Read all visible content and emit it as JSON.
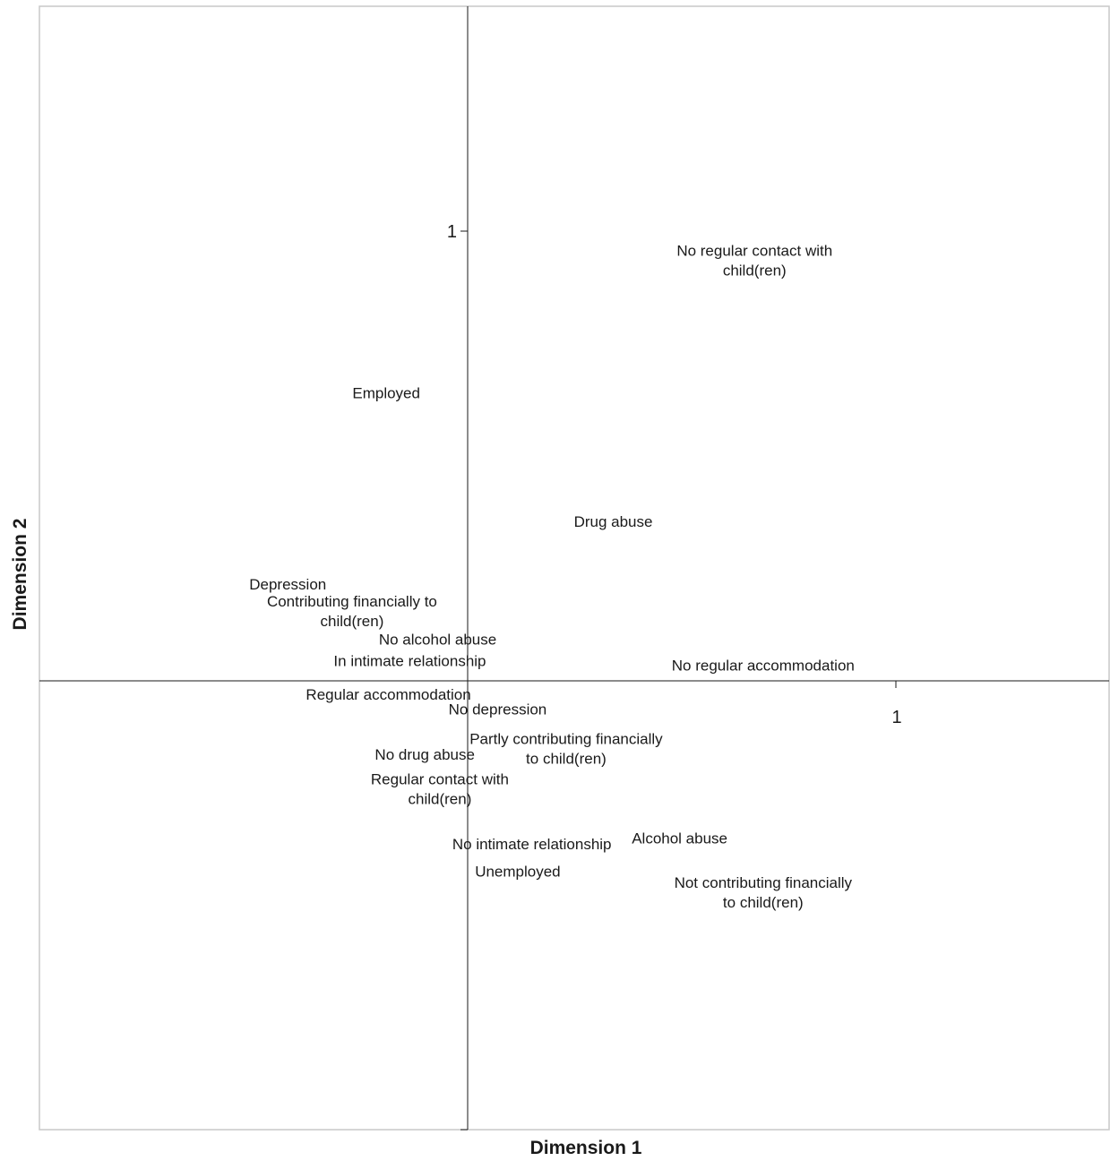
{
  "chart_data": {
    "type": "scatter",
    "xlabel": "Dimension 1",
    "ylabel": "Dimension 2",
    "xlim": [
      -1.0,
      1.5
    ],
    "ylim": [
      -1.0,
      1.5
    ],
    "xticks": [
      1
    ],
    "yticks": [
      1
    ],
    "grid": false,
    "legend": "none",
    "points": [
      {
        "label": "No regular contact with child(ren)",
        "lines": [
          "No regular contact with",
          "child(ren)"
        ],
        "x": 0.67,
        "y": 0.935
      },
      {
        "label": "Employed",
        "lines": [
          "Employed"
        ],
        "x": -0.19,
        "y": 0.64
      },
      {
        "label": "Drug abuse",
        "lines": [
          "Drug abuse"
        ],
        "x": 0.34,
        "y": 0.355
      },
      {
        "label": "Depression",
        "lines": [
          "Depression"
        ],
        "x": -0.42,
        "y": 0.215
      },
      {
        "label": "Contributing financially to child(ren)",
        "lines": [
          "Contributing financially to",
          "child(ren)"
        ],
        "x": -0.27,
        "y": 0.155
      },
      {
        "label": "No alcohol abuse",
        "lines": [
          "No alcohol abuse"
        ],
        "x": -0.07,
        "y": 0.093
      },
      {
        "label": "In intimate relationship",
        "lines": [
          "In intimate relationship"
        ],
        "x": -0.135,
        "y": 0.045
      },
      {
        "label": "No regular accommodation",
        "lines": [
          "No regular accommodation"
        ],
        "x": 0.69,
        "y": 0.035
      },
      {
        "label": "Regular accommodation",
        "lines": [
          "Regular accommodation"
        ],
        "x": -0.185,
        "y": -0.03
      },
      {
        "label": "No depression",
        "lines": [
          "No depression"
        ],
        "x": 0.07,
        "y": -0.063
      },
      {
        "label": "Partly contributing financially to child(ren)",
        "lines": [
          "Partly contributing financially",
          "to child(ren)"
        ],
        "x": 0.23,
        "y": -0.15
      },
      {
        "label": "No drug abuse",
        "lines": [
          "No drug abuse"
        ],
        "x": -0.1,
        "y": -0.163
      },
      {
        "label": "Regular contact with child(ren)",
        "lines": [
          "Regular contact with",
          "child(ren)"
        ],
        "x": -0.065,
        "y": -0.24
      },
      {
        "label": "No intimate relationship",
        "lines": [
          "No intimate relationship"
        ],
        "x": 0.15,
        "y": -0.363
      },
      {
        "label": "Alcohol abuse",
        "lines": [
          "Alcohol abuse"
        ],
        "x": 0.495,
        "y": -0.35
      },
      {
        "label": "Unemployed",
        "lines": [
          "Unemployed"
        ],
        "x": 0.117,
        "y": -0.423
      },
      {
        "label": "Not contributing financially to child(ren)",
        "lines": [
          "Not contributing financially",
          "to child(ren)"
        ],
        "x": 0.69,
        "y": -0.47
      }
    ]
  }
}
